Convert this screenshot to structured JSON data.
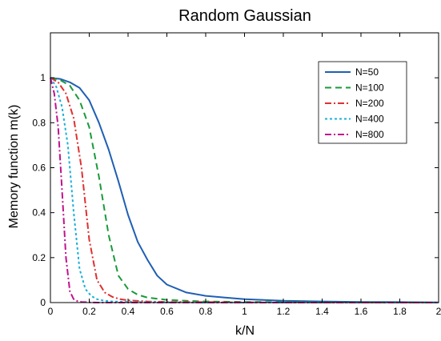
{
  "chart_data": {
    "type": "line",
    "title": "Random Gaussian",
    "xlabel": "k/N",
    "ylabel": "Memory function m(k)",
    "xlim": [
      0,
      2
    ],
    "ylim": [
      0,
      1.2
    ],
    "xticks": [
      0,
      0.2,
      0.4,
      0.6,
      0.8,
      1,
      1.2,
      1.4,
      1.6,
      1.8,
      2
    ],
    "yticks": [
      0,
      0.2,
      0.4,
      0.6,
      0.8,
      1
    ],
    "xtick_labels": [
      "0",
      "0.2",
      "0.4",
      "0.6",
      "0.8",
      "1",
      "1.2",
      "1.4",
      "1.6",
      "1.8",
      "2"
    ],
    "ytick_labels": [
      "0",
      "0.2",
      "0.4",
      "0.6",
      "0.8",
      "1"
    ],
    "grid": false,
    "legend_position": "top-right",
    "series": [
      {
        "name": "N=50",
        "color": "#1f5fb4",
        "dash": "solid",
        "x": [
          0,
          0.05,
          0.1,
          0.15,
          0.2,
          0.25,
          0.3,
          0.35,
          0.4,
          0.45,
          0.5,
          0.55,
          0.6,
          0.7,
          0.8,
          0.9,
          1.0,
          1.2,
          1.4,
          1.6,
          1.8,
          2.0
        ],
        "y": [
          1.0,
          0.995,
          0.98,
          0.955,
          0.9,
          0.8,
          0.68,
          0.54,
          0.39,
          0.27,
          0.19,
          0.12,
          0.08,
          0.045,
          0.03,
          0.022,
          0.015,
          0.008,
          0.005,
          0.003,
          0.002,
          0.001
        ]
      },
      {
        "name": "N=100",
        "color": "#1a9a3a",
        "dash": "dashed",
        "x": [
          0,
          0.05,
          0.1,
          0.15,
          0.2,
          0.25,
          0.3,
          0.35,
          0.4,
          0.45,
          0.5,
          0.6,
          0.7,
          0.8,
          1.0,
          1.2,
          1.4,
          1.6,
          1.8,
          2.0
        ],
        "y": [
          1.0,
          0.99,
          0.965,
          0.9,
          0.78,
          0.56,
          0.3,
          0.12,
          0.06,
          0.035,
          0.022,
          0.012,
          0.008,
          0.005,
          0.003,
          0.002,
          0.001,
          0.001,
          0.0,
          0.0
        ]
      },
      {
        "name": "N=200",
        "color": "#e03030",
        "dash": "dashdot",
        "x": [
          0,
          0.04,
          0.08,
          0.12,
          0.16,
          0.2,
          0.24,
          0.28,
          0.32,
          0.36,
          0.4,
          0.5,
          0.6,
          0.8,
          1.0,
          1.2,
          1.6,
          2.0
        ],
        "y": [
          1.0,
          0.98,
          0.93,
          0.82,
          0.6,
          0.28,
          0.1,
          0.045,
          0.025,
          0.015,
          0.01,
          0.005,
          0.003,
          0.002,
          0.001,
          0.0,
          0.0,
          0.0
        ]
      },
      {
        "name": "N=400",
        "color": "#1ab0d8",
        "dash": "dotted",
        "x": [
          0,
          0.03,
          0.06,
          0.09,
          0.12,
          0.15,
          0.18,
          0.21,
          0.24,
          0.28,
          0.32,
          0.4,
          0.5,
          0.6,
          0.8,
          1.0,
          1.5,
          2.0
        ],
        "y": [
          1.0,
          0.96,
          0.87,
          0.7,
          0.4,
          0.15,
          0.06,
          0.03,
          0.015,
          0.008,
          0.005,
          0.003,
          0.002,
          0.001,
          0.0,
          0.0,
          0.0,
          0.0
        ]
      },
      {
        "name": "N=800",
        "color": "#c0138f",
        "dash": "dashdot",
        "x": [
          0,
          0.02,
          0.04,
          0.06,
          0.08,
          0.1,
          0.12,
          0.14,
          0.16,
          0.2,
          0.25,
          0.3,
          0.4,
          0.6,
          0.8,
          1.0,
          1.5,
          2.0
        ],
        "y": [
          1.0,
          0.93,
          0.78,
          0.5,
          0.2,
          0.05,
          0.015,
          0.006,
          0.003,
          0.001,
          0.0,
          0.0,
          0.0,
          0.0,
          0.0,
          0.0,
          0.0,
          0.0
        ]
      }
    ]
  }
}
